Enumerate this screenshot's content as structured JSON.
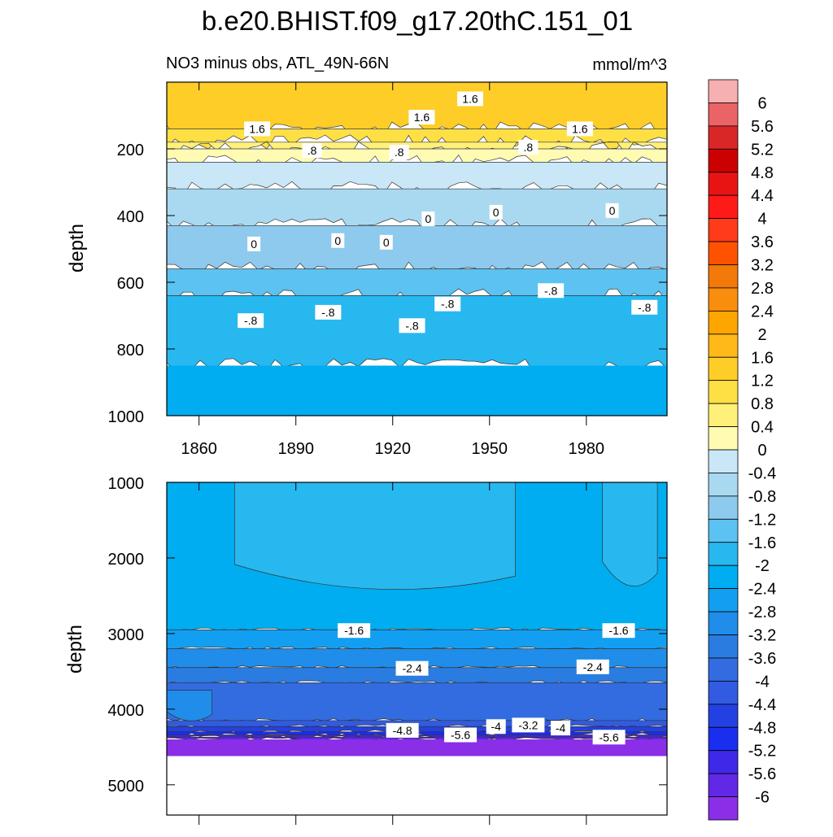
{
  "title": "b.e20.BHIST.f09_g17.20thC.151_01",
  "chart_data": [
    {
      "type": "heatmap",
      "panel": "upper",
      "subtitle": "NO3 minus obs, ATL_49N-66N",
      "units": "mmol/m^3",
      "ylabel": "depth",
      "y_reversed": true,
      "ylim": [
        0,
        1000
      ],
      "yticks": [
        200,
        400,
        600,
        800,
        1000
      ],
      "xlim": [
        1850,
        2005
      ],
      "xticks": [
        1860,
        1890,
        1920,
        1950,
        1980
      ],
      "layers": [
        {
          "level": 2.0,
          "ymax": 140
        },
        {
          "level": 1.6,
          "ymax": 180
        },
        {
          "level": 1.2,
          "ymax": 200
        },
        {
          "level": 0.8,
          "ymax": 240
        },
        {
          "level": 0.4,
          "ymax": 320
        },
        {
          "level": 0.0,
          "ymax": 430
        },
        {
          "level": -0.4,
          "ymax": 560
        },
        {
          "level": -0.8,
          "ymax": 640
        },
        {
          "level": -1.2,
          "ymax": 850
        },
        {
          "level": -1.6,
          "ymax": 1000
        }
      ],
      "contour_labels": [
        {
          "text": "1.6",
          "x": 1878,
          "y": 140
        },
        {
          "text": ".8",
          "x": 1895,
          "y": 205
        },
        {
          "text": ".8",
          "x": 1922,
          "y": 210
        },
        {
          "text": "1.6",
          "x": 1929,
          "y": 105
        },
        {
          "text": "1.6",
          "x": 1944,
          "y": 50
        },
        {
          "text": ".8",
          "x": 1962,
          "y": 195
        },
        {
          "text": "1.6",
          "x": 1978,
          "y": 140
        },
        {
          "text": "0",
          "x": 1877,
          "y": 485
        },
        {
          "text": "0",
          "x": 1903,
          "y": 475
        },
        {
          "text": "0",
          "x": 1918,
          "y": 480
        },
        {
          "text": "0",
          "x": 1931,
          "y": 410
        },
        {
          "text": "0",
          "x": 1952,
          "y": 390
        },
        {
          "text": "0",
          "x": 1988,
          "y": 385
        },
        {
          "text": "-.8",
          "x": 1876,
          "y": 715
        },
        {
          "text": "-.8",
          "x": 1900,
          "y": 690
        },
        {
          "text": "-.8",
          "x": 1926,
          "y": 730
        },
        {
          "text": "-.8",
          "x": 1937,
          "y": 665
        },
        {
          "text": "-.8",
          "x": 1969,
          "y": 625
        },
        {
          "text": "-.8",
          "x": 1998,
          "y": 675
        }
      ]
    },
    {
      "type": "heatmap",
      "panel": "lower",
      "ylabel": "depth",
      "y_reversed": true,
      "ylim": [
        1000,
        5400
      ],
      "yticks": [
        1000,
        2000,
        3000,
        4000,
        5000
      ],
      "xlim": [
        1850,
        2005
      ],
      "bottom_depth": 4620,
      "layers": [
        {
          "level": -1.6,
          "ymax": 2950
        },
        {
          "level": -2.0,
          "ymax": 3200
        },
        {
          "level": -2.4,
          "ymax": 3450
        },
        {
          "level": -2.8,
          "ymax": 3650
        },
        {
          "level": -3.2,
          "ymax": 4150
        },
        {
          "level": -3.6,
          "ymax": 4230
        },
        {
          "level": -4.0,
          "ymax": 4300
        },
        {
          "level": -4.4,
          "ymax": 4340
        },
        {
          "level": -4.8,
          "ymax": 4370
        },
        {
          "level": -5.2,
          "ymax": 4400
        },
        {
          "level": -6.0,
          "ymax": 4620
        }
      ],
      "patches": [
        {
          "level": -1.2,
          "x": [
            1871,
            1958
          ],
          "y": [
            1000,
            2550
          ]
        },
        {
          "level": -1.2,
          "x": [
            1985,
            2002
          ],
          "y": [
            1000,
            2500
          ]
        },
        {
          "level": -2.4,
          "x": [
            1850,
            1864
          ],
          "y": [
            3750,
            4150
          ]
        }
      ],
      "contour_labels": [
        {
          "text": "-1.6",
          "x": 1908,
          "y": 2960
        },
        {
          "text": "-1.6",
          "x": 1990,
          "y": 2960
        },
        {
          "text": "-2.4",
          "x": 1926,
          "y": 3460
        },
        {
          "text": "-2.4",
          "x": 1982,
          "y": 3440
        },
        {
          "text": "-4.8",
          "x": 1923,
          "y": 4280
        },
        {
          "text": "-5.6",
          "x": 1941,
          "y": 4340
        },
        {
          "text": "-4",
          "x": 1952,
          "y": 4230
        },
        {
          "text": "-3.2",
          "x": 1962,
          "y": 4210
        },
        {
          "text": "-4",
          "x": 1972,
          "y": 4250
        },
        {
          "text": "-5.6",
          "x": 1987,
          "y": 4370
        }
      ]
    }
  ],
  "colorbar": {
    "labels": [
      "6",
      "5.6",
      "5.2",
      "4.8",
      "4.4",
      "4",
      "3.6",
      "3.2",
      "2.8",
      "2.4",
      "2",
      "1.6",
      "1.2",
      "0.8",
      "0.4",
      "0",
      "-0.4",
      "-0.8",
      "-1.2",
      "-1.6",
      "-2",
      "-2.4",
      "-2.8",
      "-3.2",
      "-3.6",
      "-4",
      "-4.4",
      "-4.8",
      "-5.2",
      "-5.6",
      "-6"
    ],
    "colors": [
      "#f7b0b2",
      "#ea6466",
      "#d92727",
      "#cc0000",
      "#e81414",
      "#ff1a1a",
      "#ff3b1a",
      "#ff5200",
      "#f27a0a",
      "#f98d0d",
      "#ffa500",
      "#ffb918",
      "#ffcd28",
      "#ffe044",
      "#fff07a",
      "#fffbb3",
      "#c9e7f6",
      "#a9d9f1",
      "#8ec9ee",
      "#5bc2f1",
      "#28b8f0",
      "#00adf0",
      "#139ff1",
      "#1f8de9",
      "#2a7ce1",
      "#336ce0",
      "#315be0",
      "#2341e3",
      "#1a2ef0",
      "#3e29e9",
      "#6128e6",
      "#8b2ee8"
    ]
  }
}
